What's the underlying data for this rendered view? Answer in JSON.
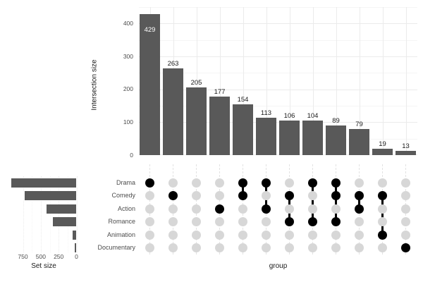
{
  "colors": {
    "background": "#ffffff",
    "bar_fill": "#595959",
    "bar_label": "#1a1a1a",
    "bar_label_inside": "#ffffff",
    "dot_empty": "#d7d7d7",
    "dot_filled": "#000000",
    "connector": "#000000",
    "grid_major": "#ebebeb",
    "grid_minor": "#f5f5f5",
    "matrix_guide": "#e2e2e2",
    "axis_text": "#4d4d4d",
    "title_text": "#1a1a1a"
  },
  "labels": {
    "y_axis_title": "Intersection size",
    "x_axis_title": "group",
    "setsize_title": "Set size"
  },
  "chart_data": [
    {
      "name": "intersection-size-bars",
      "type": "bar",
      "ylabel": "Intersection size",
      "xlabel": "group",
      "values": [
        429,
        263,
        205,
        177,
        154,
        113,
        106,
        104,
        89,
        79,
        19,
        13
      ],
      "bar_labels": [
        "429",
        "263",
        "205",
        "177",
        "154",
        "113",
        "106",
        "104",
        "89",
        "79",
        "19",
        "13"
      ],
      "yticks": [
        "0",
        "100",
        "200",
        "300",
        "400"
      ],
      "ytick_values": [
        0,
        100,
        200,
        300,
        400
      ],
      "ylim": [
        0,
        450
      ],
      "grid": true,
      "legend": false,
      "combos": [
        [
          "Drama"
        ],
        [
          "Comedy"
        ],
        [],
        [
          "Action"
        ],
        [
          "Drama",
          "Comedy"
        ],
        [
          "Drama",
          "Action"
        ],
        [
          "Comedy",
          "Romance"
        ],
        [
          "Drama",
          "Romance"
        ],
        [
          "Drama",
          "Comedy",
          "Romance"
        ],
        [
          "Comedy",
          "Action"
        ],
        [
          "Comedy",
          "Animation"
        ],
        [
          "Documentary"
        ]
      ]
    },
    {
      "name": "combination-matrix",
      "type": "upset-matrix",
      "rows": [
        "Drama",
        "Comedy",
        "Action",
        "Romance",
        "Animation",
        "Documentary"
      ],
      "columns": [
        [
          1,
          0,
          0,
          0,
          0,
          0
        ],
        [
          0,
          1,
          0,
          0,
          0,
          0
        ],
        [
          0,
          0,
          0,
          0,
          0,
          0
        ],
        [
          0,
          0,
          1,
          0,
          0,
          0
        ],
        [
          1,
          1,
          0,
          0,
          0,
          0
        ],
        [
          1,
          0,
          1,
          0,
          0,
          0
        ],
        [
          0,
          1,
          0,
          1,
          0,
          0
        ],
        [
          1,
          0,
          0,
          1,
          0,
          0
        ],
        [
          1,
          1,
          0,
          1,
          0,
          0
        ],
        [
          0,
          1,
          1,
          0,
          0,
          0
        ],
        [
          0,
          1,
          0,
          0,
          1,
          0
        ],
        [
          0,
          0,
          0,
          0,
          0,
          1
        ]
      ]
    },
    {
      "name": "set-size-bars",
      "type": "bar",
      "orientation": "horizontal-reversed",
      "xlabel": "Set size",
      "categories": [
        "Drama",
        "Comedy",
        "Action",
        "Romance",
        "Animation",
        "Documentary"
      ],
      "values": [
        915,
        730,
        415,
        330,
        50,
        25
      ],
      "xticks": [
        "750",
        "500",
        "250",
        "0"
      ],
      "xtick_values": [
        750,
        500,
        250,
        0
      ],
      "xlim": [
        0,
        920
      ],
      "grid": true
    }
  ]
}
